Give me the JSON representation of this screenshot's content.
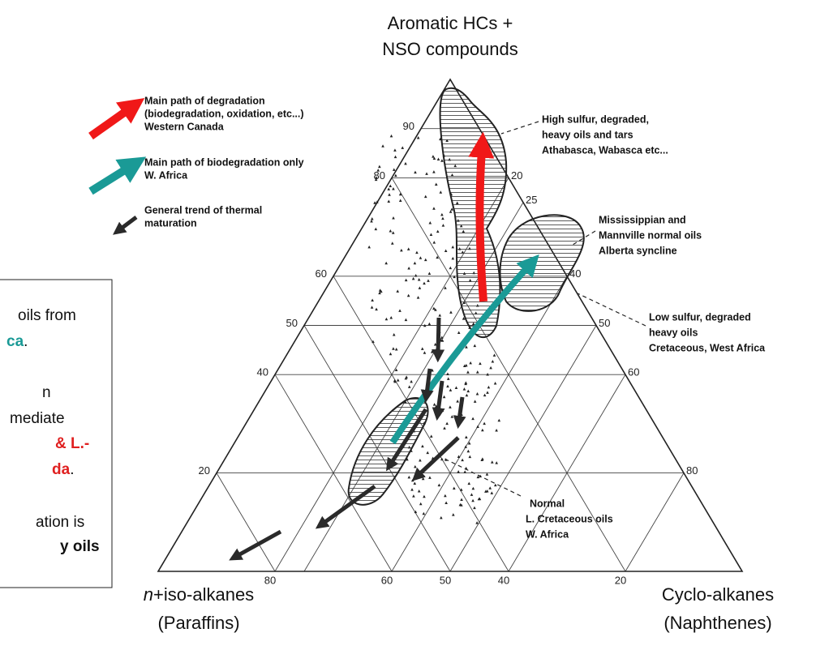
{
  "apex": {
    "line1": "Aromatic HCs +",
    "line2": "NSO compounds"
  },
  "bottom_left": {
    "italic": "n",
    "line1": "+iso-alkanes",
    "line2": "(Paraffins)"
  },
  "bottom_right": {
    "line1": "Cyclo-alkanes",
    "line2": "(Naphthenes)"
  },
  "legend": [
    {
      "lines": [
        "Main path of degradation",
        "(biodegradation, oxidation, etc...)",
        "Western Canada"
      ]
    },
    {
      "lines": [
        "Main path of biodegradation only",
        "W. Africa"
      ]
    },
    {
      "lines": [
        "General trend of thermal",
        "maturation"
      ]
    }
  ],
  "annotations": [
    {
      "lines": [
        "High sulfur, degraded,",
        "heavy oils and tars",
        "Athabasca, Wabasca etc..."
      ]
    },
    {
      "lines": [
        "Mississippian and",
        "Mannville normal oils",
        "Alberta syncline"
      ]
    },
    {
      "lines": [
        "Low sulfur, degraded",
        "heavy oils",
        "Cretaceous, West Africa"
      ]
    },
    {
      "lines": [
        "Normal",
        "L. Cretaceous oils",
        "W. Africa"
      ]
    }
  ],
  "left_ticks": [
    90,
    80,
    60,
    50,
    40,
    20
  ],
  "right_ticks": [
    20,
    25,
    40,
    50,
    60,
    80
  ],
  "bottom_ticks": [
    80,
    60,
    50,
    40,
    20
  ],
  "box": {
    "lines": [
      [
        {
          "text": "oils from"
        }
      ],
      [
        {
          "text": "ca",
          "color": "#1a9a96",
          "bold": true
        },
        {
          "text": "."
        }
      ],
      [
        {
          "text": "n"
        }
      ],
      [
        {
          "text": "mediate"
        }
      ],
      [
        {
          "text": "& L.-",
          "color": "#e02020",
          "bold": true
        }
      ],
      [
        {
          "text": "da",
          "color": "#e02020",
          "bold": true
        },
        {
          "text": "."
        }
      ],
      [
        {
          "text": "ation is"
        }
      ],
      [
        {
          "text": "y oils",
          "bold": true
        }
      ]
    ]
  }
}
